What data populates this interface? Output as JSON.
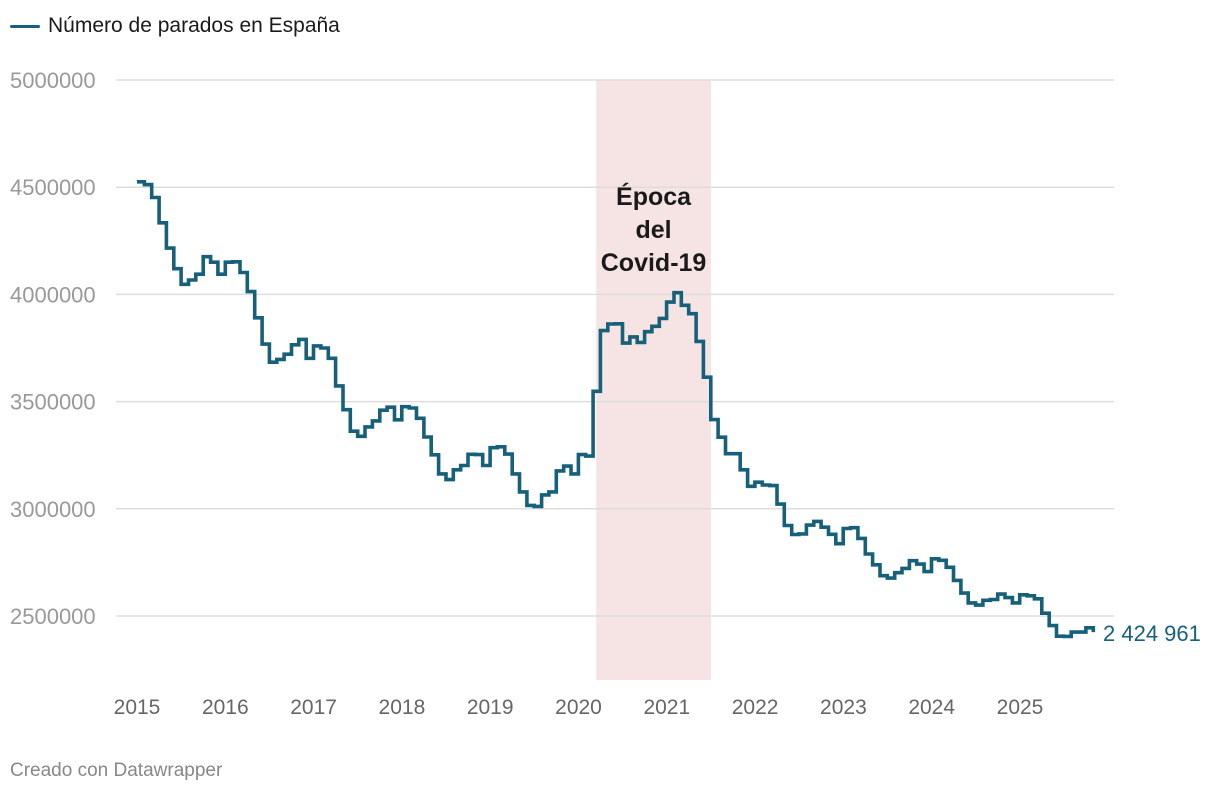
{
  "legend": {
    "label": "Número de parados en España"
  },
  "footer": {
    "credit": "Creado con Datawrapper"
  },
  "colors": {
    "line": "#17607a",
    "band": "#f6e4e4",
    "grid": "#dddddd"
  },
  "chart_data": {
    "type": "line",
    "ylim": [
      2200000,
      5000000
    ],
    "yticks": [
      {
        "value": 2500000,
        "label": "2500000"
      },
      {
        "value": 3000000,
        "label": "3000000"
      },
      {
        "value": 3500000,
        "label": "3500000"
      },
      {
        "value": 4000000,
        "label": "4000000"
      },
      {
        "value": 4500000,
        "label": "4500000"
      },
      {
        "value": 5000000,
        "label": "5000000"
      }
    ],
    "xlim": [
      2015,
      2026
    ],
    "xticks": [
      2015,
      2016,
      2017,
      2018,
      2019,
      2020,
      2021,
      2022,
      2023,
      2024,
      2025
    ],
    "grid": true,
    "annotation": {
      "x_start": 2020.2,
      "x_end": 2021.5,
      "label_lines": [
        "Época",
        "del",
        "Covid-19"
      ]
    },
    "end_label": "2 424 961",
    "series": [
      {
        "name": "Número de parados en España",
        "step": true,
        "values": [
          4525000,
          4512000,
          4452000,
          4334000,
          4216000,
          4120000,
          4047000,
          4067000,
          4094000,
          4176000,
          4150000,
          4094000,
          4150000,
          4152000,
          4102000,
          4013000,
          3891000,
          3768000,
          3684000,
          3697000,
          3721000,
          3765000,
          3790000,
          3702000,
          3760000,
          3750000,
          3702000,
          3573000,
          3462000,
          3362000,
          3338000,
          3382000,
          3410000,
          3460000,
          3474000,
          3415000,
          3476000,
          3470000,
          3422000,
          3335000,
          3252000,
          3163000,
          3136000,
          3182000,
          3202000,
          3254000,
          3253000,
          3202000,
          3285000,
          3289000,
          3255000,
          3163000,
          3079000,
          3016000,
          3011000,
          3065000,
          3079000,
          3177000,
          3199000,
          3163000,
          3253000,
          3246000,
          3548000,
          3831000,
          3862000,
          3863000,
          3773000,
          3802000,
          3776000,
          3826000,
          3851000,
          3888000,
          3964000,
          4008000,
          3949000,
          3910000,
          3781000,
          3614000,
          3416000,
          3334000,
          3257000,
          3257000,
          3182000,
          3105000,
          3124000,
          3111000,
          3108000,
          3022000,
          2922000,
          2880000,
          2883000,
          2924000,
          2941000,
          2914000,
          2881000,
          2837000,
          2908000,
          2912000,
          2862000,
          2789000,
          2739000,
          2688000,
          2677000,
          2702000,
          2722000,
          2758000,
          2742000,
          2707000,
          2767000,
          2760000,
          2727000,
          2666000,
          2607000,
          2561000,
          2551000,
          2573000,
          2577000,
          2602000,
          2586000,
          2561000,
          2599000,
          2594000,
          2580000,
          2513000,
          2455000,
          2406000,
          2405000,
          2425000,
          2425000,
          2445000,
          2424961
        ]
      }
    ]
  }
}
